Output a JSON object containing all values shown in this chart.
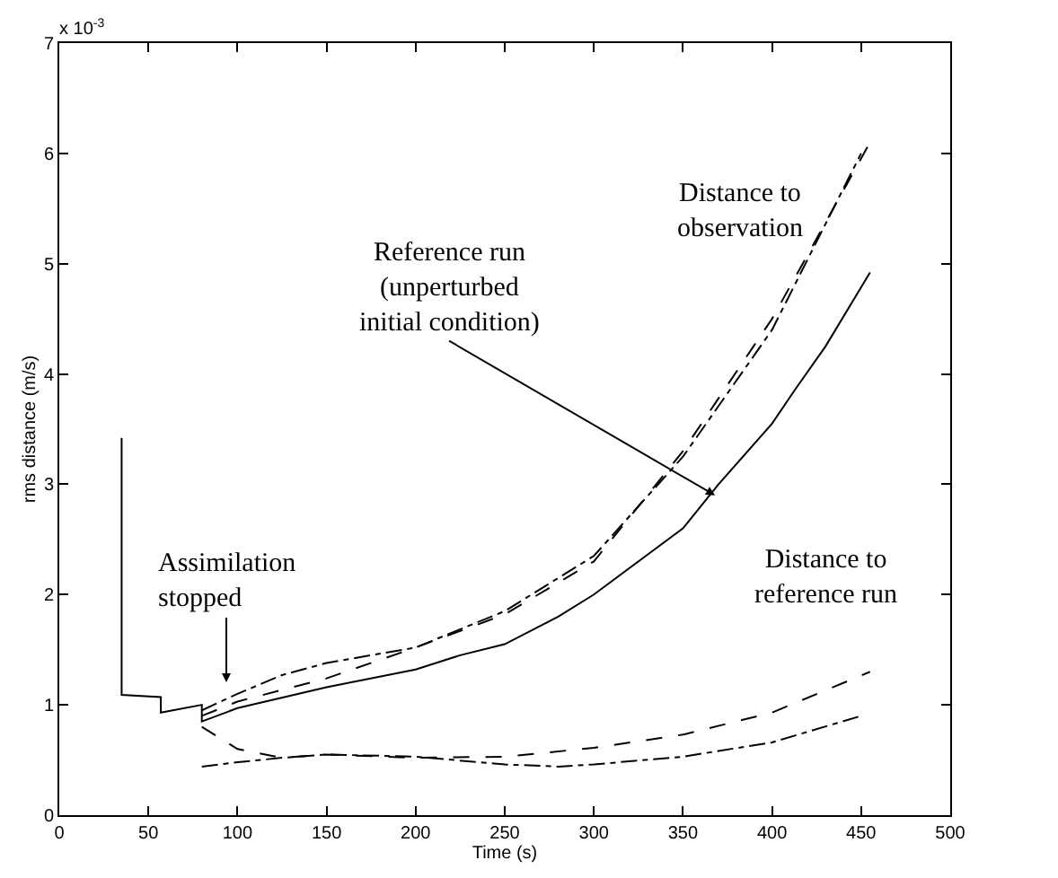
{
  "chart_data": {
    "type": "line",
    "xlabel": "Time (s)",
    "ylabel": "rms distance (m/s)",
    "xlim": [
      0,
      500
    ],
    "ylim": [
      0,
      7
    ],
    "xticks": [
      0,
      50,
      100,
      150,
      200,
      250,
      300,
      350,
      400,
      450,
      500
    ],
    "yticks": [
      0,
      1,
      2,
      3,
      4,
      5,
      6,
      7
    ],
    "marker": "none",
    "series": [
      {
        "color": "#000000",
        "line_style": "solid",
        "x": [
          35,
          35,
          57,
          57,
          80,
          80,
          100,
          150,
          200,
          225,
          250,
          280,
          300,
          350,
          370,
          400,
          413,
          430,
          455
        ],
        "values": [
          3.42,
          1.09,
          1.07,
          0.93,
          1.0,
          0.85,
          0.97,
          1.16,
          1.32,
          1.45,
          1.55,
          1.8,
          2.0,
          2.6,
          3.0,
          3.55,
          3.86,
          4.25,
          4.92
        ]
      },
      {
        "color": "#000000",
        "line_style": "dashed",
        "x": [
          80,
          100,
          150,
          200,
          250,
          300,
          350,
          400,
          455
        ],
        "values": [
          0.9,
          1.03,
          1.24,
          1.52,
          1.82,
          2.3,
          3.3,
          4.5,
          6.1
        ]
      },
      {
        "color": "#000000",
        "line_style": "dashdot",
        "x": [
          80,
          100,
          125,
          150,
          200,
          250,
          300,
          350,
          400,
          450
        ],
        "values": [
          0.95,
          1.1,
          1.27,
          1.38,
          1.52,
          1.85,
          2.35,
          3.25,
          4.4,
          6.0
        ]
      },
      {
        "color": "#000000",
        "line_style": "dashed",
        "x": [
          80,
          100,
          125,
          150,
          200,
          250,
          300,
          350,
          400,
          455
        ],
        "values": [
          0.8,
          0.6,
          0.52,
          0.55,
          0.52,
          0.53,
          0.61,
          0.73,
          0.93,
          1.3
        ]
      },
      {
        "color": "#000000",
        "line_style": "dashdot",
        "x": [
          80,
          100,
          125,
          150,
          200,
          250,
          280,
          300,
          350,
          400,
          450
        ],
        "values": [
          0.44,
          0.48,
          0.52,
          0.55,
          0.53,
          0.46,
          0.44,
          0.46,
          0.53,
          0.66,
          0.9
        ]
      }
    ],
    "annotations": [
      {
        "text": "Reference run\n(unperturbed\ninitial condition)",
        "x": 368,
        "y": 2.9
      },
      "Assimilation\nstopped",
      "Distance to\nobservation",
      "Distance to\nreference run",
      "x 10$^{-3}$"
    ]
  }
}
